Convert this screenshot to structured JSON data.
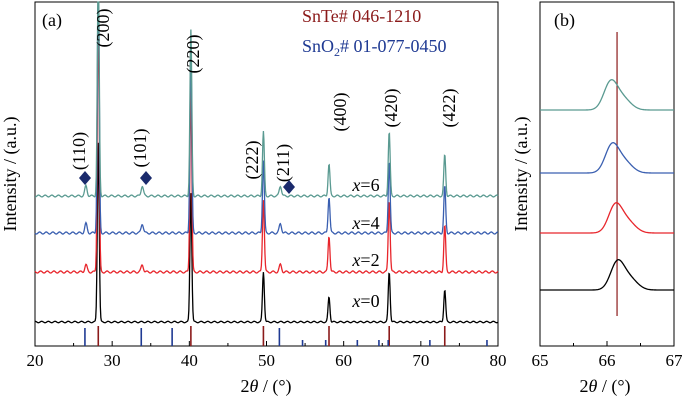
{
  "chart_data": [
    {
      "panel": "(a)",
      "type": "line",
      "xlabel_prefix": "2",
      "xlabel_theta": "θ",
      "xlabel_suffix": " / (°)",
      "ylabel": "Intensity / (a.u.)",
      "xlim": [
        20,
        80
      ],
      "xticks": [
        20,
        30,
        40,
        50,
        60,
        70,
        80
      ],
      "legend": [
        {
          "label": "SnTe# 046-1210",
          "color": "#8b1a1a"
        },
        {
          "label_main": "SnO",
          "label_sub": "2",
          "label_rest": "# 01-077-0450",
          "color": "#1f3a93"
        }
      ],
      "series": [
        {
          "name": "x=0",
          "label_var": "x",
          "label_val": "=0",
          "color": "#000000",
          "baseline_level": 0
        },
        {
          "name": "x=2",
          "label_var": "x",
          "label_val": "=2",
          "color": "#e8262c",
          "baseline_level": 1
        },
        {
          "name": "x=4",
          "label_var": "x",
          "label_val": "=4",
          "color": "#3a5fb0",
          "baseline_level": 2
        },
        {
          "name": "x=6",
          "label_var": "x",
          "label_val": "=6",
          "color": "#5a9a91",
          "baseline_level": 3
        }
      ],
      "peaks_snte": [
        {
          "pos": 28.2,
          "hkl": "(200)",
          "height": 1.0
        },
        {
          "pos": 40.2,
          "hkl": "(220)",
          "height": 0.72
        },
        {
          "pos": 49.6,
          "hkl": "(222)",
          "height": 0.28
        },
        {
          "pos": 58.1,
          "hkl": "(400)",
          "height": 0.14
        },
        {
          "pos": 65.9,
          "hkl": "(420)",
          "height": 0.28
        },
        {
          "pos": 73.1,
          "hkl": "(422)",
          "height": 0.18
        }
      ],
      "peaks_sno2": [
        {
          "pos": 26.6,
          "hkl": "(110)"
        },
        {
          "pos": 33.9,
          "hkl": "(101)"
        },
        {
          "pos": 51.8,
          "hkl": "(211)"
        }
      ],
      "ref_snte_bars": [
        28.2,
        40.2,
        49.6,
        58.1,
        65.9,
        73.1
      ],
      "ref_sno2_bars": [
        26.6,
        33.9,
        37.9,
        51.8,
        54.8,
        57.8,
        61.9,
        64.7,
        65.9,
        71.3,
        78.7
      ]
    },
    {
      "panel": "(b)",
      "type": "line",
      "xlabel_prefix": "2",
      "xlabel_theta": "θ",
      "xlabel_suffix": " / (°)",
      "ylabel": "Intensity / (a.u.)",
      "xlim": [
        65,
        67
      ],
      "xticks": [
        65,
        66,
        67
      ],
      "reference_line": 66.15,
      "series": [
        {
          "name": "x=0",
          "color": "#000000",
          "peak_pos": 66.15
        },
        {
          "name": "x=2",
          "color": "#e8262c",
          "peak_pos": 66.12
        },
        {
          "name": "x=4",
          "color": "#3a5fb0",
          "peak_pos": 66.07
        },
        {
          "name": "x=6",
          "color": "#5a9a91",
          "peak_pos": 66.05
        }
      ]
    }
  ]
}
